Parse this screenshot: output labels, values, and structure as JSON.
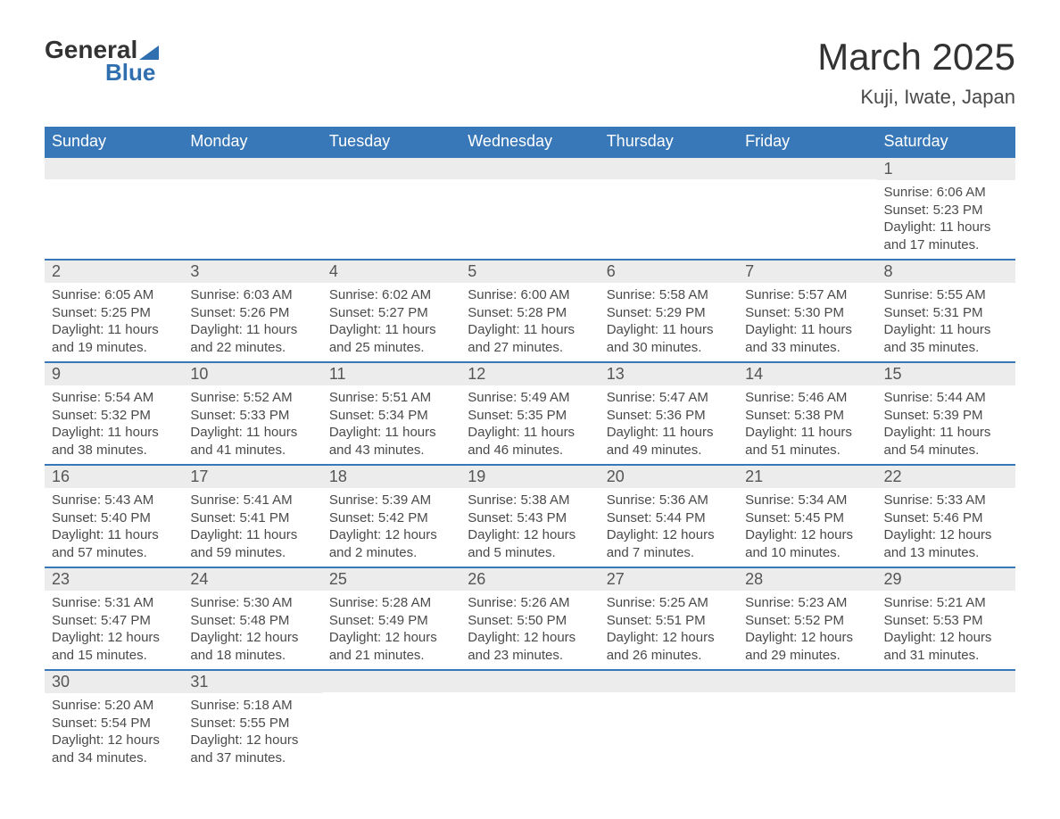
{
  "logo": {
    "textTop": "General",
    "textBottom": "Blue"
  },
  "title": "March 2025",
  "location": "Kuji, Iwate, Japan",
  "colors": {
    "headerBg": "#3978b8",
    "headerText": "#ffffff",
    "dayNumBg": "#ececec",
    "rowBorder": "#3978b8",
    "bodyText": "#4a4a4a",
    "logoAccent": "#2f6fb0"
  },
  "layout": {
    "columns": 7,
    "weeks": 6,
    "firstDayOffset": 6
  },
  "dayHeaders": [
    "Sunday",
    "Monday",
    "Tuesday",
    "Wednesday",
    "Thursday",
    "Friday",
    "Saturday"
  ],
  "days": [
    {
      "n": 1,
      "sunrise": "6:06 AM",
      "sunset": "5:23 PM",
      "daylight": "11 hours and 17 minutes."
    },
    {
      "n": 2,
      "sunrise": "6:05 AM",
      "sunset": "5:25 PM",
      "daylight": "11 hours and 19 minutes."
    },
    {
      "n": 3,
      "sunrise": "6:03 AM",
      "sunset": "5:26 PM",
      "daylight": "11 hours and 22 minutes."
    },
    {
      "n": 4,
      "sunrise": "6:02 AM",
      "sunset": "5:27 PM",
      "daylight": "11 hours and 25 minutes."
    },
    {
      "n": 5,
      "sunrise": "6:00 AM",
      "sunset": "5:28 PM",
      "daylight": "11 hours and 27 minutes."
    },
    {
      "n": 6,
      "sunrise": "5:58 AM",
      "sunset": "5:29 PM",
      "daylight": "11 hours and 30 minutes."
    },
    {
      "n": 7,
      "sunrise": "5:57 AM",
      "sunset": "5:30 PM",
      "daylight": "11 hours and 33 minutes."
    },
    {
      "n": 8,
      "sunrise": "5:55 AM",
      "sunset": "5:31 PM",
      "daylight": "11 hours and 35 minutes."
    },
    {
      "n": 9,
      "sunrise": "5:54 AM",
      "sunset": "5:32 PM",
      "daylight": "11 hours and 38 minutes."
    },
    {
      "n": 10,
      "sunrise": "5:52 AM",
      "sunset": "5:33 PM",
      "daylight": "11 hours and 41 minutes."
    },
    {
      "n": 11,
      "sunrise": "5:51 AM",
      "sunset": "5:34 PM",
      "daylight": "11 hours and 43 minutes."
    },
    {
      "n": 12,
      "sunrise": "5:49 AM",
      "sunset": "5:35 PM",
      "daylight": "11 hours and 46 minutes."
    },
    {
      "n": 13,
      "sunrise": "5:47 AM",
      "sunset": "5:36 PM",
      "daylight": "11 hours and 49 minutes."
    },
    {
      "n": 14,
      "sunrise": "5:46 AM",
      "sunset": "5:38 PM",
      "daylight": "11 hours and 51 minutes."
    },
    {
      "n": 15,
      "sunrise": "5:44 AM",
      "sunset": "5:39 PM",
      "daylight": "11 hours and 54 minutes."
    },
    {
      "n": 16,
      "sunrise": "5:43 AM",
      "sunset": "5:40 PM",
      "daylight": "11 hours and 57 minutes."
    },
    {
      "n": 17,
      "sunrise": "5:41 AM",
      "sunset": "5:41 PM",
      "daylight": "11 hours and 59 minutes."
    },
    {
      "n": 18,
      "sunrise": "5:39 AM",
      "sunset": "5:42 PM",
      "daylight": "12 hours and 2 minutes."
    },
    {
      "n": 19,
      "sunrise": "5:38 AM",
      "sunset": "5:43 PM",
      "daylight": "12 hours and 5 minutes."
    },
    {
      "n": 20,
      "sunrise": "5:36 AM",
      "sunset": "5:44 PM",
      "daylight": "12 hours and 7 minutes."
    },
    {
      "n": 21,
      "sunrise": "5:34 AM",
      "sunset": "5:45 PM",
      "daylight": "12 hours and 10 minutes."
    },
    {
      "n": 22,
      "sunrise": "5:33 AM",
      "sunset": "5:46 PM",
      "daylight": "12 hours and 13 minutes."
    },
    {
      "n": 23,
      "sunrise": "5:31 AM",
      "sunset": "5:47 PM",
      "daylight": "12 hours and 15 minutes."
    },
    {
      "n": 24,
      "sunrise": "5:30 AM",
      "sunset": "5:48 PM",
      "daylight": "12 hours and 18 minutes."
    },
    {
      "n": 25,
      "sunrise": "5:28 AM",
      "sunset": "5:49 PM",
      "daylight": "12 hours and 21 minutes."
    },
    {
      "n": 26,
      "sunrise": "5:26 AM",
      "sunset": "5:50 PM",
      "daylight": "12 hours and 23 minutes."
    },
    {
      "n": 27,
      "sunrise": "5:25 AM",
      "sunset": "5:51 PM",
      "daylight": "12 hours and 26 minutes."
    },
    {
      "n": 28,
      "sunrise": "5:23 AM",
      "sunset": "5:52 PM",
      "daylight": "12 hours and 29 minutes."
    },
    {
      "n": 29,
      "sunrise": "5:21 AM",
      "sunset": "5:53 PM",
      "daylight": "12 hours and 31 minutes."
    },
    {
      "n": 30,
      "sunrise": "5:20 AM",
      "sunset": "5:54 PM",
      "daylight": "12 hours and 34 minutes."
    },
    {
      "n": 31,
      "sunrise": "5:18 AM",
      "sunset": "5:55 PM",
      "daylight": "12 hours and 37 minutes."
    }
  ],
  "labels": {
    "sunrise": "Sunrise: ",
    "sunset": "Sunset: ",
    "daylight": "Daylight: "
  }
}
